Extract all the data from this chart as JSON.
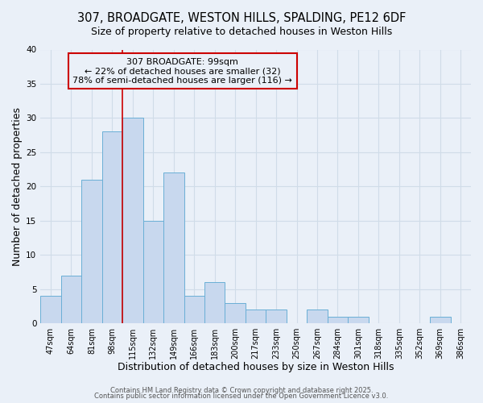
{
  "title1": "307, BROADGATE, WESTON HILLS, SPALDING, PE12 6DF",
  "title2": "Size of property relative to detached houses in Weston Hills",
  "xlabel": "Distribution of detached houses by size in Weston Hills",
  "ylabel": "Number of detached properties",
  "categories": [
    "47sqm",
    "64sqm",
    "81sqm",
    "98sqm",
    "115sqm",
    "132sqm",
    "149sqm",
    "166sqm",
    "183sqm",
    "200sqm",
    "217sqm",
    "233sqm",
    "250sqm",
    "267sqm",
    "284sqm",
    "301sqm",
    "318sqm",
    "335sqm",
    "352sqm",
    "369sqm",
    "386sqm"
  ],
  "values": [
    4,
    7,
    21,
    28,
    30,
    15,
    22,
    4,
    6,
    3,
    2,
    2,
    0,
    2,
    1,
    1,
    0,
    0,
    0,
    1,
    0
  ],
  "bar_color": "#c8d8ee",
  "bar_edge_color": "#6aafd6",
  "annotation_line1": "307 BROADGATE: 99sqm",
  "annotation_line2": "← 22% of detached houses are smaller (32)",
  "annotation_line3": "78% of semi-detached houses are larger (116) →",
  "vline_x": 3.5,
  "vline_color": "#cc0000",
  "annotation_box_color": "#cc0000",
  "ylim": [
    0,
    40
  ],
  "yticks": [
    0,
    5,
    10,
    15,
    20,
    25,
    30,
    35,
    40
  ],
  "footer1": "Contains HM Land Registry data © Crown copyright and database right 2025.",
  "footer2": "Contains public sector information licensed under the Open Government Licence v3.0.",
  "bg_color": "#eaf0f8",
  "grid_color": "#d0dce8",
  "title1_fontsize": 10.5,
  "title2_fontsize": 9,
  "axis_label_fontsize": 9,
  "tick_fontsize": 7,
  "annotation_fontsize": 8,
  "footer_fontsize": 6
}
